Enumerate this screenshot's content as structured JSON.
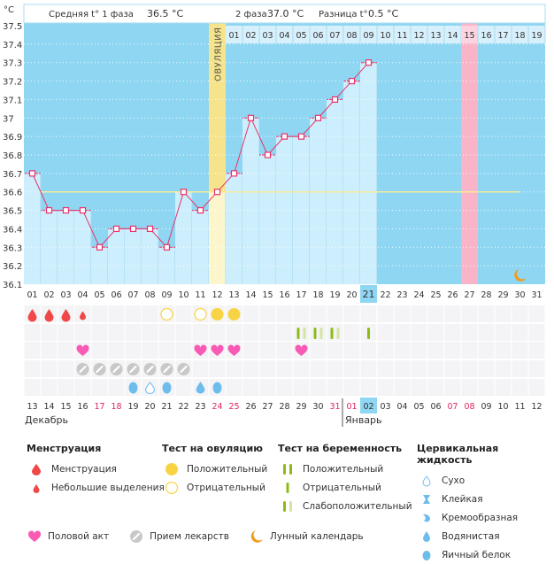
{
  "header": {
    "unit_label": "°C",
    "phase1_label": "Средняя t° 1 фаза",
    "phase1_value": "36.5 °C",
    "phase2_label": "2 фаза",
    "phase2_value": "37.0 °C",
    "diff_label": "Разница t°",
    "diff_value": "0.5 °C",
    "ovulation_label": "ОВУЛЯЦИЯ"
  },
  "chart_data": {
    "type": "line",
    "title": "",
    "ylabel": "°C",
    "ylim": [
      36.1,
      37.5
    ],
    "yticks": [
      "36.1",
      "36.2",
      "36.3",
      "36.4",
      "36.5",
      "36.6",
      "36.7",
      "36.8",
      "36.9",
      "37",
      "37.1",
      "37.2",
      "37.3",
      "37.4",
      "37.5"
    ],
    "cycle_days": [
      "01",
      "02",
      "03",
      "04",
      "05",
      "06",
      "07",
      "08",
      "09",
      "10",
      "11",
      "12",
      "13",
      "14",
      "15",
      "16",
      "17",
      "18",
      "19",
      "20",
      "21",
      "22",
      "23",
      "24",
      "25",
      "26",
      "27",
      "28",
      "29",
      "30",
      "31"
    ],
    "second_phase_days": [
      "01",
      "02",
      "03",
      "04",
      "05",
      "06",
      "07",
      "08",
      "09",
      "10",
      "11",
      "12",
      "13",
      "14",
      "15",
      "16",
      "17",
      "18",
      "19"
    ],
    "series": [
      {
        "name": "Базальная температура",
        "values": [
          36.7,
          36.5,
          36.5,
          36.5,
          36.3,
          36.4,
          36.4,
          36.4,
          36.3,
          36.6,
          36.5,
          36.6,
          36.7,
          37.0,
          36.8,
          36.9,
          36.9,
          37.0,
          37.1,
          37.2,
          37.3
        ]
      }
    ],
    "coverline": 36.6,
    "coverline_end_day": 30,
    "ovulation_day": 12,
    "highlight_day": 27,
    "current_day": 21,
    "moon_day": 30,
    "grid": true,
    "legend": "bottom"
  },
  "events": {
    "menstruation": [
      {
        "day": 1,
        "type": "heavy"
      },
      {
        "day": 2,
        "type": "heavy"
      },
      {
        "day": 3,
        "type": "heavy"
      },
      {
        "day": 4,
        "type": "light"
      }
    ],
    "ovulation_test": [
      {
        "day": 9,
        "type": "negative"
      },
      {
        "day": 11,
        "type": "negative"
      },
      {
        "day": 12,
        "type": "positive"
      },
      {
        "day": 13,
        "type": "positive"
      }
    ],
    "pregnancy_test": [
      {
        "day": 17,
        "type": "weak"
      },
      {
        "day": 18,
        "type": "weak"
      },
      {
        "day": 19,
        "type": "weak"
      },
      {
        "day": 21,
        "type": "negative"
      }
    ],
    "intercourse": [
      4,
      11,
      12,
      13,
      17
    ],
    "medication": [
      4,
      5,
      6,
      7,
      8,
      9,
      10
    ],
    "cervical_fluid": [
      {
        "day": 7,
        "type": "egg-white"
      },
      {
        "day": 8,
        "type": "dry"
      },
      {
        "day": 9,
        "type": "egg-white"
      },
      {
        "day": 11,
        "type": "watery"
      },
      {
        "day": 12,
        "type": "egg-white"
      }
    ]
  },
  "calendar": {
    "dates": [
      "13",
      "14",
      "15",
      "16",
      "17",
      "18",
      "19",
      "20",
      "21",
      "22",
      "23",
      "24",
      "25",
      "26",
      "27",
      "28",
      "29",
      "30",
      "31",
      "01",
      "02",
      "03",
      "04",
      "05",
      "06",
      "07",
      "08",
      "09",
      "10",
      "11",
      "12"
    ],
    "weekend_indices": [
      4,
      5,
      11,
      12,
      18,
      19,
      25,
      26
    ],
    "today_index": 20,
    "month1": "Декабрь",
    "month2": "Январь",
    "month2_start_index": 19
  },
  "colors": {
    "bg_blue": "#8fd6f2",
    "bar_fill": "#cdeefc",
    "line": "#e8336b",
    "ovulation": "#f6e48c",
    "highlight": "#f9b4c8",
    "coverline": "#f6ec9c",
    "menstruation": "#f04848",
    "ovulation_test": "#f8d444",
    "preg_strong": "#8cbc14",
    "preg_weak": "#d4e4a4",
    "heart": "#f85ab4",
    "pill": "#c8c8c8",
    "fluid": "#6cbcec",
    "moon": "#f09c1c",
    "weekend": "#e0245c"
  },
  "legend": {
    "menstruation": {
      "title": "Менструация",
      "items": [
        "Менструация",
        "Небольшие выделения"
      ]
    },
    "ovulation_test": {
      "title": "Тест на овуляцию",
      "items": [
        "Положительный",
        "Отрицательный"
      ]
    },
    "pregnancy_test": {
      "title": "Тест на беременность",
      "items": [
        "Положительный",
        "Отрицательный",
        "Слабоположительный"
      ]
    },
    "cervical_fluid": {
      "title": "Цервикальная жидкость",
      "items": [
        "Сухо",
        "Клейкая",
        "Кремообразная",
        "Водянистая",
        "Яичный белок"
      ]
    },
    "other": [
      "Половой акт",
      "Прием лекарств",
      "Лунный календарь"
    ]
  }
}
